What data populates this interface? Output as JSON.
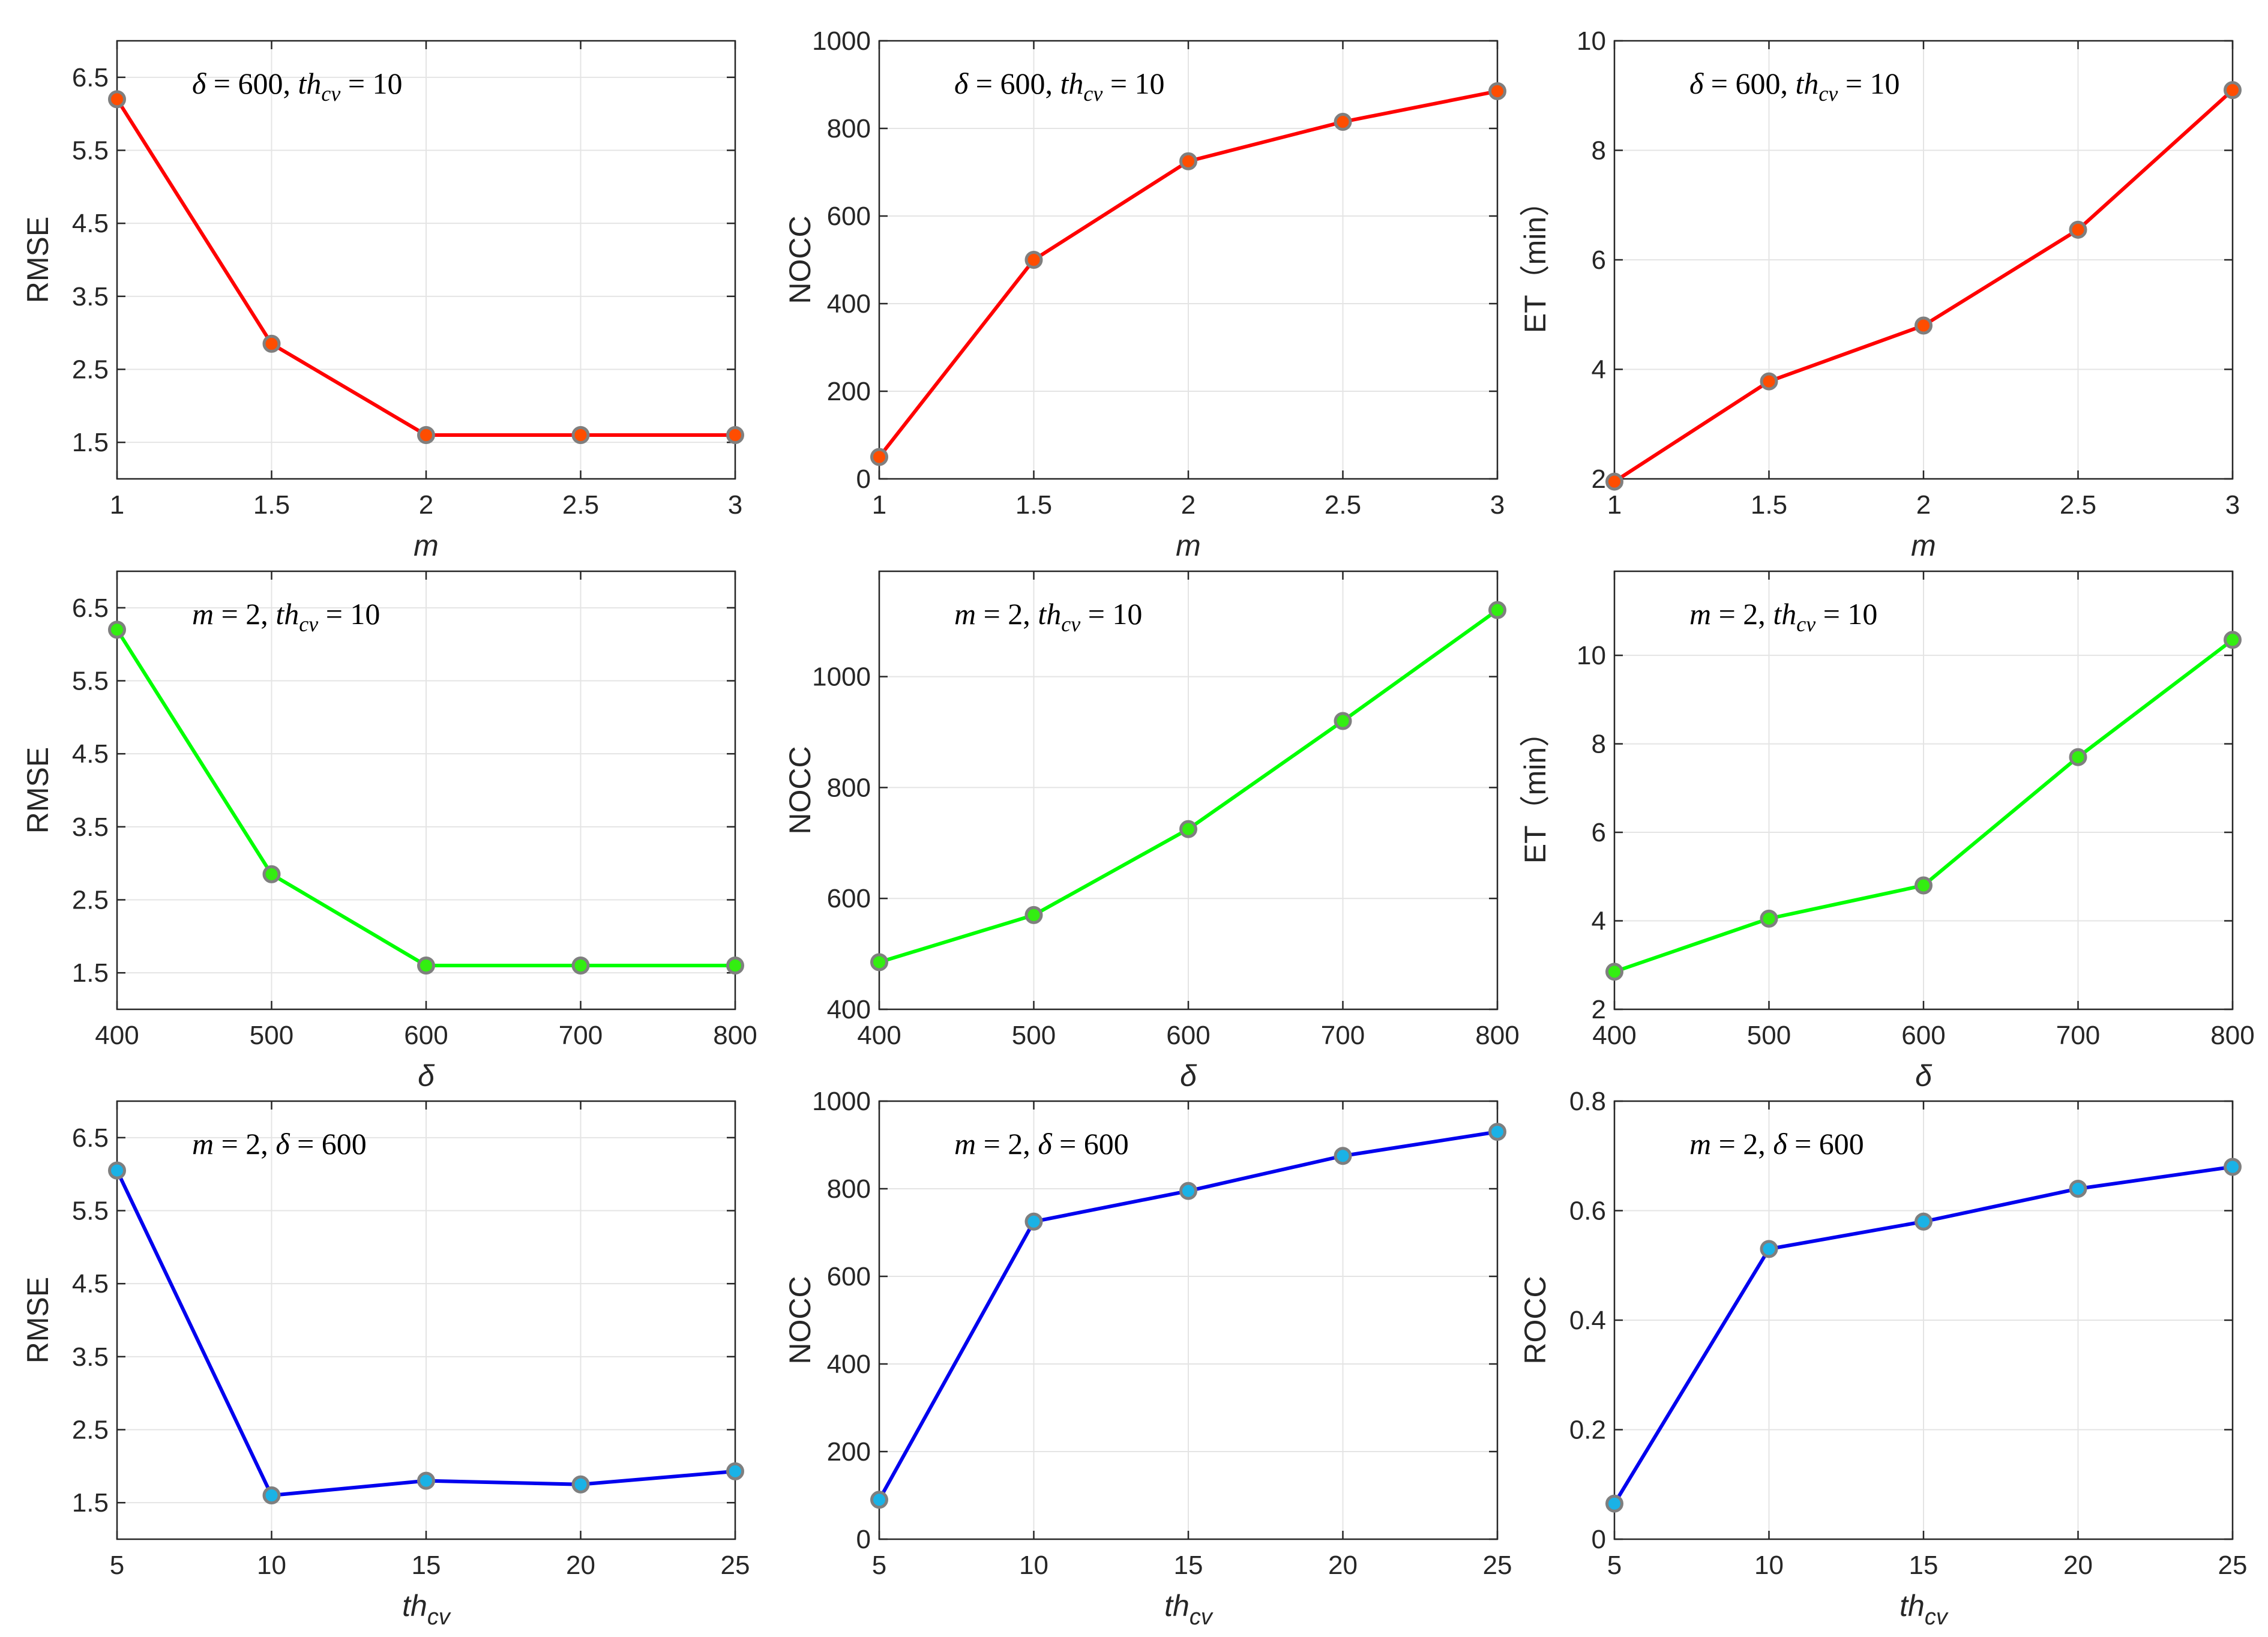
{
  "chart_data": [
    {
      "type": "line",
      "id": "p11",
      "x": [
        1,
        1.5,
        2,
        2.5,
        3
      ],
      "values": [
        6.2,
        2.85,
        1.6,
        1.6,
        1.6
      ],
      "xlim": [
        1,
        3
      ],
      "ylim": [
        1,
        7
      ],
      "xticks": [
        "1",
        "1.5",
        "2",
        "2.5",
        "3"
      ],
      "yticks": [
        1.5,
        2.5,
        3.5,
        4.5,
        5.5,
        6.5
      ],
      "ytick_labels": [
        "1.5",
        "2.5",
        "3.5",
        "4.5",
        "5.5",
        "6.5"
      ],
      "xlabel": "m",
      "ylabel": "RMSE",
      "annotation": {
        "p1": "δ",
        "p2": " = 600, ",
        "p3": "th",
        "p4": "cv",
        "p5": " = 10"
      },
      "line_color": "#ff0000",
      "marker_color": "#ff4d00"
    },
    {
      "type": "line",
      "id": "p12",
      "x": [
        1,
        1.5,
        2,
        2.5,
        3
      ],
      "values": [
        50,
        500,
        725,
        815,
        885
      ],
      "xlim": [
        1,
        3
      ],
      "ylim": [
        0,
        1000
      ],
      "xticks": [
        "1",
        "1.5",
        "2",
        "2.5",
        "3"
      ],
      "yticks": [
        0,
        200,
        400,
        600,
        800,
        1000
      ],
      "ytick_labels": [
        "0",
        "200",
        "400",
        "600",
        "800",
        "1000"
      ],
      "xlabel": "m",
      "ylabel": "NOCC",
      "annotation": {
        "p1": "δ",
        "p2": " = 600, ",
        "p3": "th",
        "p4": "cv",
        "p5": " = 10"
      },
      "line_color": "#ff0000",
      "marker_color": "#ff4d00"
    },
    {
      "type": "line",
      "id": "p13",
      "x": [
        1,
        1.5,
        2,
        2.5,
        3
      ],
      "values": [
        1.95,
        3.78,
        4.8,
        6.55,
        9.1
      ],
      "xlim": [
        1,
        3
      ],
      "ylim": [
        2,
        10
      ],
      "xticks": [
        "1",
        "1.5",
        "2",
        "2.5",
        "3"
      ],
      "yticks": [
        2,
        4,
        6,
        8,
        10
      ],
      "ytick_labels": [
        "2",
        "4",
        "6",
        "8",
        "10"
      ],
      "xlabel": "m",
      "ylabel": "ET（min）",
      "annotation": {
        "p1": "δ",
        "p2": " = 600, ",
        "p3": "th",
        "p4": "cv",
        "p5": " = 10"
      },
      "line_color": "#ff0000",
      "marker_color": "#ff4d00"
    },
    {
      "type": "line",
      "id": "p21",
      "x": [
        400,
        500,
        600,
        700,
        800
      ],
      "values": [
        6.2,
        2.85,
        1.6,
        1.6,
        1.6
      ],
      "xlim": [
        400,
        800
      ],
      "ylim": [
        1,
        7
      ],
      "xticks": [
        "400",
        "500",
        "600",
        "700",
        "800"
      ],
      "yticks": [
        1.5,
        2.5,
        3.5,
        4.5,
        5.5,
        6.5
      ],
      "ytick_labels": [
        "1.5",
        "2.5",
        "3.5",
        "4.5",
        "5.5",
        "6.5"
      ],
      "xlabel": "δ",
      "ylabel": "RMSE",
      "annotation": {
        "p1": "m",
        "p2": " = 2, ",
        "p3": "th",
        "p4": "cv",
        "p5": " = 10"
      },
      "line_color": "#00ff00",
      "marker_color": "#33ee11"
    },
    {
      "type": "line",
      "id": "p22",
      "x": [
        400,
        500,
        600,
        700,
        800
      ],
      "values": [
        485,
        570,
        725,
        920,
        1120
      ],
      "xlim": [
        400,
        800
      ],
      "ylim": [
        400,
        1190
      ],
      "xticks": [
        "400",
        "500",
        "600",
        "700",
        "800"
      ],
      "yticks": [
        400,
        600,
        800,
        1000
      ],
      "ytick_labels": [
        "400",
        "600",
        "800",
        "1000"
      ],
      "xlabel": "δ",
      "ylabel": "NOCC",
      "annotation": {
        "p1": "m",
        "p2": " = 2, ",
        "p3": "th",
        "p4": "cv",
        "p5": " = 10"
      },
      "line_color": "#00ff00",
      "marker_color": "#33ee11"
    },
    {
      "type": "line",
      "id": "p23",
      "x": [
        400,
        500,
        600,
        700,
        800
      ],
      "values": [
        2.85,
        4.05,
        4.8,
        7.7,
        10.35
      ],
      "xlim": [
        400,
        800
      ],
      "ylim": [
        2,
        11.9
      ],
      "xticks": [
        "400",
        "500",
        "600",
        "700",
        "800"
      ],
      "yticks": [
        2,
        4,
        6,
        8,
        10
      ],
      "ytick_labels": [
        "2",
        "4",
        "6",
        "8",
        "10"
      ],
      "xlabel": "δ",
      "ylabel": "ET（min）",
      "annotation": {
        "p1": "m",
        "p2": " = 2, ",
        "p3": "th",
        "p4": "cv",
        "p5": " = 10"
      },
      "line_color": "#00ff00",
      "marker_color": "#33ee11"
    },
    {
      "type": "line",
      "id": "p31",
      "x": [
        5,
        10,
        15,
        20,
        25
      ],
      "values": [
        6.05,
        1.6,
        1.8,
        1.75,
        1.93
      ],
      "xlim": [
        5,
        25
      ],
      "ylim": [
        1,
        7
      ],
      "xticks": [
        "5",
        "10",
        "15",
        "20",
        "25"
      ],
      "yticks": [
        1.5,
        2.5,
        3.5,
        4.5,
        5.5,
        6.5
      ],
      "ytick_labels": [
        "1.5",
        "2.5",
        "3.5",
        "4.5",
        "5.5",
        "6.5"
      ],
      "xlabel": "th",
      "xlabel_sub": "cv",
      "ylabel": "RMSE",
      "annotation": {
        "p1": "m",
        "p2": " = 2, ",
        "p3": "δ",
        "p4": "",
        "p5": " = 600"
      },
      "line_color": "#0000ee",
      "marker_color": "#1ab2e6"
    },
    {
      "type": "line",
      "id": "p32",
      "x": [
        5,
        10,
        15,
        20,
        25
      ],
      "values": [
        90,
        725,
        795,
        875,
        930
      ],
      "xlim": [
        5,
        25
      ],
      "ylim": [
        0,
        1000
      ],
      "xticks": [
        "5",
        "10",
        "15",
        "20",
        "25"
      ],
      "yticks": [
        0,
        200,
        400,
        600,
        800,
        1000
      ],
      "ytick_labels": [
        "0",
        "200",
        "400",
        "600",
        "800",
        "1000"
      ],
      "xlabel": "th",
      "xlabel_sub": "cv",
      "ylabel": "NOCC",
      "annotation": {
        "p1": "m",
        "p2": " = 2, ",
        "p3": "δ",
        "p4": "",
        "p5": " = 600"
      },
      "line_color": "#0000ee",
      "marker_color": "#1ab2e6"
    },
    {
      "type": "line",
      "id": "p33",
      "x": [
        5,
        10,
        15,
        20,
        25
      ],
      "values": [
        0.065,
        0.53,
        0.58,
        0.64,
        0.68
      ],
      "xlim": [
        5,
        25
      ],
      "ylim": [
        0,
        0.8
      ],
      "xticks": [
        "5",
        "10",
        "15",
        "20",
        "25"
      ],
      "yticks": [
        0,
        0.2,
        0.4,
        0.6,
        0.8
      ],
      "ytick_labels": [
        "0",
        "0.2",
        "0.4",
        "0.6",
        "0.8"
      ],
      "xlabel": "th",
      "xlabel_sub": "cv",
      "ylabel": "ROCC",
      "annotation": {
        "p1": "m",
        "p2": " = 2, ",
        "p3": "δ",
        "p4": "",
        "p5": " = 600"
      },
      "line_color": "#0000ee",
      "marker_color": "#1ab2e6"
    }
  ]
}
